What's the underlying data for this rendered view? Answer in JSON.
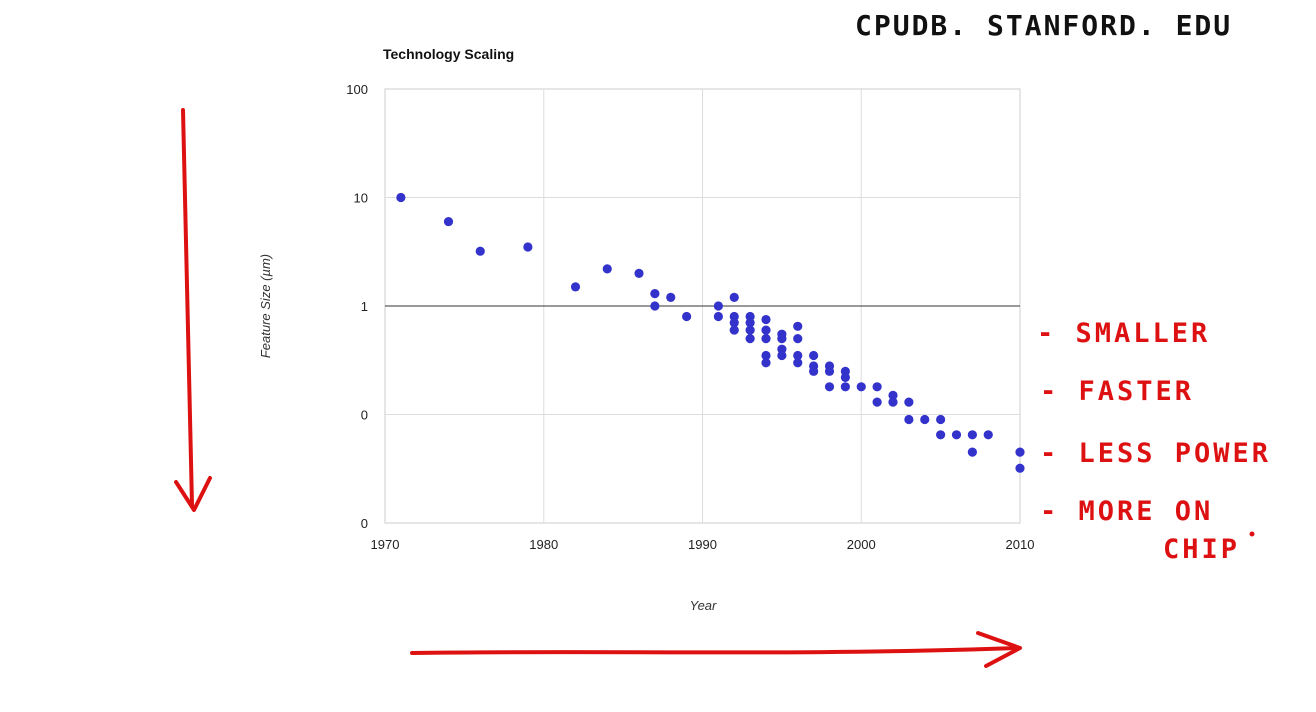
{
  "header_note": "CPUDB. STANFORD. EDU",
  "chart_data": {
    "type": "scatter",
    "title": "Technology Scaling",
    "xlabel": "Year",
    "ylabel": "Feature Size (µm)",
    "xlim": [
      1970,
      2010
    ],
    "x_ticks": [
      "1970",
      "1980",
      "1990",
      "2000",
      "2010"
    ],
    "y_scale": "log",
    "y_ticks": [
      "100",
      "10",
      "1",
      "0",
      "0"
    ],
    "grid": true,
    "marker_color": "#3333cc",
    "series": [
      {
        "points": [
          [
            1971,
            10
          ],
          [
            1974,
            6
          ],
          [
            1976,
            3.2
          ],
          [
            1979,
            3.5
          ],
          [
            1982,
            1.5
          ],
          [
            1984,
            2.2
          ],
          [
            1986,
            2
          ],
          [
            1987,
            1.3
          ],
          [
            1987,
            1
          ],
          [
            1988,
            1.2
          ],
          [
            1989,
            0.8
          ],
          [
            1991,
            1
          ],
          [
            1991,
            0.8
          ],
          [
            1992,
            1.2
          ],
          [
            1992,
            0.8
          ],
          [
            1992,
            0.7
          ],
          [
            1992,
            0.6
          ],
          [
            1993,
            0.8
          ],
          [
            1993,
            0.7
          ],
          [
            1993,
            0.6
          ],
          [
            1993,
            0.5
          ],
          [
            1994,
            0.75
          ],
          [
            1994,
            0.6
          ],
          [
            1994,
            0.5
          ],
          [
            1994,
            0.35
          ],
          [
            1994,
            0.3
          ],
          [
            1995,
            0.55
          ],
          [
            1995,
            0.5
          ],
          [
            1995,
            0.4
          ],
          [
            1995,
            0.35
          ],
          [
            1996,
            0.65
          ],
          [
            1996,
            0.5
          ],
          [
            1996,
            0.35
          ],
          [
            1996,
            0.3
          ],
          [
            1997,
            0.35
          ],
          [
            1997,
            0.28
          ],
          [
            1997,
            0.25
          ],
          [
            1998,
            0.28
          ],
          [
            1998,
            0.25
          ],
          [
            1998,
            0.18
          ],
          [
            1999,
            0.25
          ],
          [
            1999,
            0.22
          ],
          [
            1999,
            0.18
          ],
          [
            2000,
            0.18
          ],
          [
            2001,
            0.18
          ],
          [
            2001,
            0.13
          ],
          [
            2002,
            0.15
          ],
          [
            2002,
            0.13
          ],
          [
            2003,
            0.13
          ],
          [
            2003,
            0.09
          ],
          [
            2004,
            0.09
          ],
          [
            2005,
            0.09
          ],
          [
            2005,
            0.065
          ],
          [
            2006,
            0.065
          ],
          [
            2007,
            0.065
          ],
          [
            2007,
            0.045
          ],
          [
            2008,
            0.065
          ],
          [
            2010,
            0.045
          ],
          [
            2010,
            0.032
          ]
        ]
      }
    ]
  },
  "annotations": {
    "benefits": [
      "- SMALLER",
      "- FASTER",
      "- LESS POWER",
      "- MORE ON",
      "CHIP"
    ]
  }
}
